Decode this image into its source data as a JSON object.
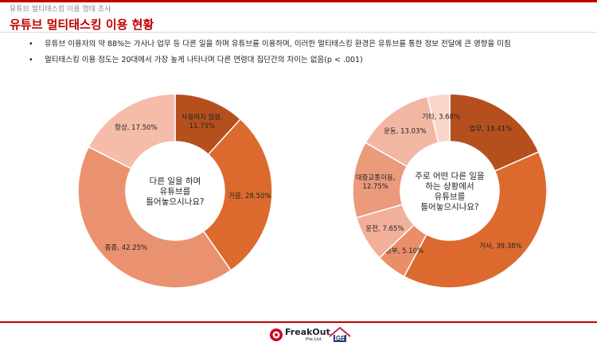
{
  "header": {
    "category": "유튜브 멀티태스킹 이용 행태 조사",
    "title": "유튜브 멀티태스킹 이용 현황"
  },
  "bullets": [
    "유튜브 이용자의 약 88%는 가사나 업무 등 다른 일을 하며 유튜브를 이용하며, 이러한 멀티태스킹 환경은 유튜브를 통한 정보 전달에 큰 영향을 미침",
    "멀티태스킹 이용 정도는 20대에서 가장 높게 나타나며 다른 연령대 집단간의 차이는 없음(p < .001)"
  ],
  "chart_data": [
    {
      "type": "pie",
      "title": "다른 일을 하며 유튜브를 틀어놓으시나요?",
      "center_lines": [
        "다른 일을 하며",
        "유튜브를",
        "틀어놓으시나요?"
      ],
      "slices": [
        {
          "name": "사용하지 않음",
          "value": 11.75,
          "label_lines": [
            "사용하지 않음,",
            "11.75%"
          ],
          "color": "#b5501e"
        },
        {
          "name": "가끔",
          "value": 28.5,
          "label_lines": [
            "가끔, 28.50%"
          ],
          "color": "#dc6a2e"
        },
        {
          "name": "종종",
          "value": 42.25,
          "label_lines": [
            "종종, 42.25%"
          ],
          "color": "#ea9270"
        },
        {
          "name": "항상",
          "value": 17.5,
          "label_lines": [
            "항상, 17.50%"
          ],
          "color": "#f4bca9"
        }
      ]
    },
    {
      "type": "pie",
      "title": "주로 어떤 다른 일을 하는 상황에서 유튜브를 틀어놓으시나요?",
      "center_lines": [
        "주로 어떤 다른 일을",
        "하는 상황에서",
        "유튜브를",
        "틀어놓으시나요?"
      ],
      "slices": [
        {
          "name": "업무",
          "value": 18.41,
          "label_lines": [
            "업무, 18.41%"
          ],
          "color": "#b5501e"
        },
        {
          "name": "가사",
          "value": 39.38,
          "label_lines": [
            "가사, 39.38%"
          ],
          "color": "#dc6a2e"
        },
        {
          "name": "공부",
          "value": 5.1,
          "label_lines": [
            "공부, 5.10%"
          ],
          "color": "#ea8e68"
        },
        {
          "name": "운전",
          "value": 7.65,
          "label_lines": [
            "운전, 7.65%"
          ],
          "color": "#f2b09a"
        },
        {
          "name": "대중교통이용",
          "value": 12.75,
          "label_lines": [
            "대중교통이용,",
            "12.75%"
          ],
          "color": "#eb9a7c"
        },
        {
          "name": "운동",
          "value": 13.03,
          "label_lines": [
            "운동, 13.03%"
          ],
          "color": "#f2b7a3"
        },
        {
          "name": "기타",
          "value": 3.68,
          "label_lines": [
            "기타, 3.68%"
          ],
          "color": "#f8d6ca"
        }
      ]
    }
  ],
  "logo": {
    "name": "FreakOut",
    "sub": "Pte.Ltd."
  }
}
